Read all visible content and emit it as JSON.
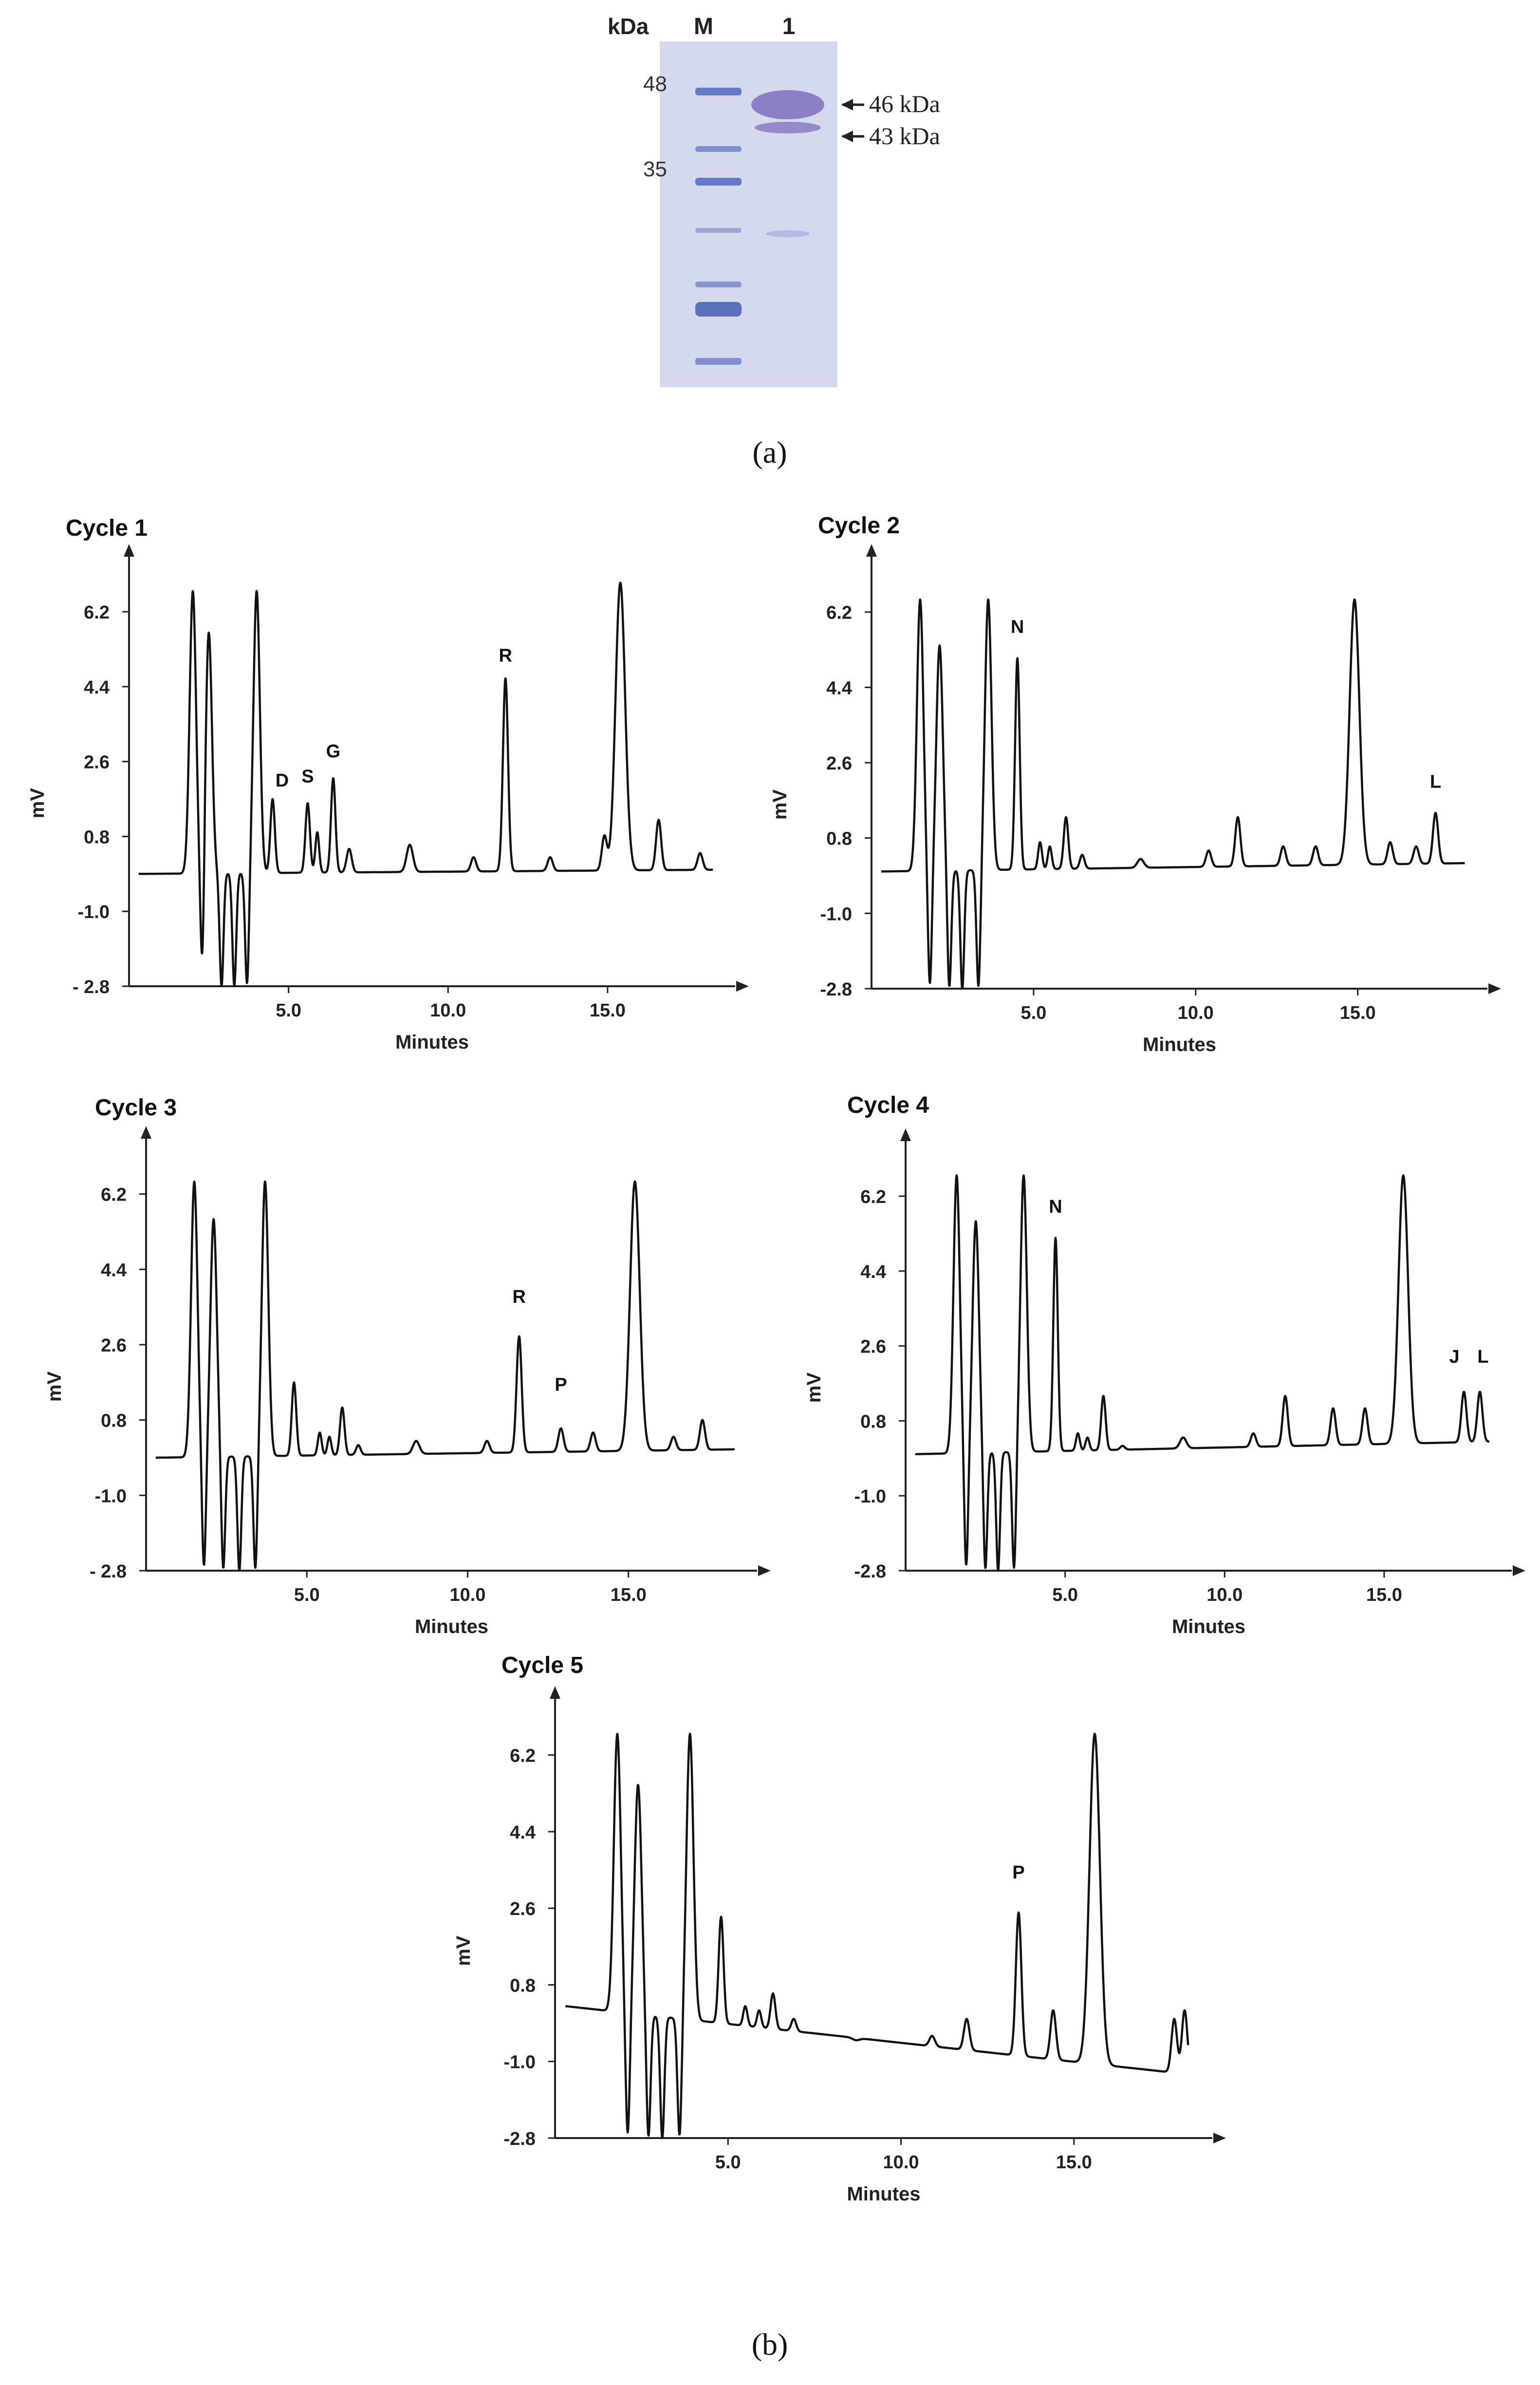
{
  "figure": {
    "panel_a_label": "(a)",
    "panel_b_label": "(b)"
  },
  "gel": {
    "unit_label": "kDa",
    "lane_marker_label": "M",
    "lane_sample_label": "1",
    "marker_bands": [
      "48",
      "35"
    ],
    "sample_band_labels": [
      "46 kDa",
      "43 kDa"
    ],
    "colors": {
      "background": "#d4d9ee",
      "band": "#5a6fc2",
      "sample_band": "#7f6fbe"
    }
  },
  "chart_data": [
    {
      "type": "line",
      "title": "Cycle 1",
      "xlabel": "Minutes",
      "ylabel": "mV",
      "xticks": [
        "5.0",
        "10.0",
        "15.0"
      ],
      "xtick_values": [
        5,
        10,
        15
      ],
      "yticks": [
        "6.2",
        "4.4",
        "2.6",
        "0.8",
        "-1.0",
        "- 2.8"
      ],
      "ytick_values": [
        6.2,
        4.4,
        2.6,
        0.8,
        -1.0,
        -2.8
      ],
      "xlim": [
        0,
        19
      ],
      "ylim": [
        -2.8,
        7.5
      ],
      "baseline": {
        "start": -0.1,
        "end": 0.0
      },
      "peaks": [
        {
          "x": 2.0,
          "y": 6.7,
          "w": 0.1
        },
        {
          "x": 2.5,
          "y": 5.7,
          "w": 0.1
        },
        {
          "x": 4.0,
          "y": 6.7,
          "w": 0.1
        },
        {
          "x": 4.5,
          "y": 1.7,
          "w": 0.07
        },
        {
          "x": 5.6,
          "y": 1.6,
          "w": 0.07
        },
        {
          "x": 5.9,
          "y": 0.9,
          "w": 0.06
        },
        {
          "x": 6.4,
          "y": 2.2,
          "w": 0.07
        },
        {
          "x": 6.9,
          "y": 0.5,
          "w": 0.08
        },
        {
          "x": 8.8,
          "y": 0.6,
          "w": 0.1
        },
        {
          "x": 10.8,
          "y": 0.3,
          "w": 0.08
        },
        {
          "x": 11.8,
          "y": 4.6,
          "w": 0.08
        },
        {
          "x": 13.2,
          "y": 0.3,
          "w": 0.08
        },
        {
          "x": 14.9,
          "y": 0.8,
          "w": 0.08
        },
        {
          "x": 15.4,
          "y": 6.9,
          "w": 0.15
        },
        {
          "x": 16.6,
          "y": 1.2,
          "w": 0.08
        },
        {
          "x": 17.9,
          "y": 0.4,
          "w": 0.08
        }
      ],
      "dips": [
        {
          "x": 2.3,
          "w": 0.06
        },
        {
          "x": 2.9,
          "w": 0.06
        },
        {
          "x": 3.3,
          "w": 0.06
        },
        {
          "x": 3.7,
          "w": 0.06
        }
      ],
      "annotations": [
        {
          "text": "D",
          "x": 4.8,
          "y": 2.0
        },
        {
          "text": "S",
          "x": 5.6,
          "y": 2.1
        },
        {
          "text": "G",
          "x": 6.4,
          "y": 2.7
        },
        {
          "text": "R",
          "x": 11.8,
          "y": 5.0
        }
      ]
    },
    {
      "type": "line",
      "title": "Cycle 2",
      "xlabel": "Minutes",
      "ylabel": "mV",
      "xticks": [
        "5.0",
        "10.0",
        "15.0"
      ],
      "xtick_values": [
        5,
        10,
        15
      ],
      "yticks": [
        "6.2",
        "4.4",
        "2.6",
        "0.8",
        "-1.0",
        "-2.8"
      ],
      "ytick_values": [
        6.2,
        4.4,
        2.6,
        0.8,
        -1.0,
        -2.8
      ],
      "xlim": [
        0,
        19
      ],
      "ylim": [
        -2.8,
        7.5
      ],
      "baseline": {
        "start": 0.0,
        "end": 0.2
      },
      "peaks": [
        {
          "x": 1.5,
          "y": 6.5,
          "w": 0.1
        },
        {
          "x": 2.1,
          "y": 5.4,
          "w": 0.1
        },
        {
          "x": 3.6,
          "y": 6.5,
          "w": 0.1
        },
        {
          "x": 4.5,
          "y": 5.1,
          "w": 0.07
        },
        {
          "x": 5.2,
          "y": 0.7,
          "w": 0.06
        },
        {
          "x": 5.5,
          "y": 0.6,
          "w": 0.06
        },
        {
          "x": 6.0,
          "y": 1.3,
          "w": 0.07
        },
        {
          "x": 6.5,
          "y": 0.4,
          "w": 0.07
        },
        {
          "x": 8.3,
          "y": 0.3,
          "w": 0.1
        },
        {
          "x": 10.4,
          "y": 0.5,
          "w": 0.08
        },
        {
          "x": 11.3,
          "y": 1.3,
          "w": 0.08
        },
        {
          "x": 12.7,
          "y": 0.6,
          "w": 0.08
        },
        {
          "x": 13.7,
          "y": 0.6,
          "w": 0.08
        },
        {
          "x": 14.9,
          "y": 6.5,
          "w": 0.15
        },
        {
          "x": 16.0,
          "y": 0.7,
          "w": 0.08
        },
        {
          "x": 16.8,
          "y": 0.6,
          "w": 0.08
        },
        {
          "x": 17.4,
          "y": 1.4,
          "w": 0.08
        }
      ],
      "dips": [
        {
          "x": 1.8,
          "w": 0.06
        },
        {
          "x": 2.4,
          "w": 0.06
        },
        {
          "x": 2.8,
          "w": 0.06
        },
        {
          "x": 3.3,
          "w": 0.06
        }
      ],
      "annotations": [
        {
          "text": "N",
          "x": 4.5,
          "y": 5.7
        },
        {
          "text": "L",
          "x": 17.4,
          "y": 2.0
        }
      ]
    },
    {
      "type": "line",
      "title": "Cycle  3",
      "xlabel": "Minutes",
      "ylabel": "mV",
      "xticks": [
        "5.0",
        "10.0",
        "15.0"
      ],
      "xtick_values": [
        5,
        10,
        15
      ],
      "yticks": [
        "6.2",
        "4.4",
        "2.6",
        "0.8",
        "-1.0",
        "- 2.8"
      ],
      "ytick_values": [
        6.2,
        4.4,
        2.6,
        0.8,
        -1.0,
        -2.8
      ],
      "xlim": [
        0,
        19
      ],
      "ylim": [
        -2.8,
        7.5
      ],
      "baseline": {
        "start": -0.1,
        "end": 0.1
      },
      "peaks": [
        {
          "x": 1.5,
          "y": 6.5,
          "w": 0.1
        },
        {
          "x": 2.1,
          "y": 5.6,
          "w": 0.1
        },
        {
          "x": 3.7,
          "y": 6.5,
          "w": 0.1
        },
        {
          "x": 4.6,
          "y": 1.7,
          "w": 0.07
        },
        {
          "x": 5.4,
          "y": 0.5,
          "w": 0.06
        },
        {
          "x": 5.7,
          "y": 0.4,
          "w": 0.06
        },
        {
          "x": 6.1,
          "y": 1.1,
          "w": 0.07
        },
        {
          "x": 6.6,
          "y": 0.2,
          "w": 0.07
        },
        {
          "x": 8.4,
          "y": 0.3,
          "w": 0.1
        },
        {
          "x": 10.6,
          "y": 0.3,
          "w": 0.08
        },
        {
          "x": 11.6,
          "y": 2.8,
          "w": 0.08
        },
        {
          "x": 12.9,
          "y": 0.6,
          "w": 0.08
        },
        {
          "x": 13.9,
          "y": 0.5,
          "w": 0.08
        },
        {
          "x": 15.2,
          "y": 6.5,
          "w": 0.15
        },
        {
          "x": 16.4,
          "y": 0.4,
          "w": 0.08
        },
        {
          "x": 17.3,
          "y": 0.8,
          "w": 0.08
        }
      ],
      "dips": [
        {
          "x": 1.8,
          "w": 0.06
        },
        {
          "x": 2.4,
          "w": 0.06
        },
        {
          "x": 2.9,
          "w": 0.06
        },
        {
          "x": 3.4,
          "w": 0.06
        }
      ],
      "annotations": [
        {
          "text": "R",
          "x": 11.6,
          "y": 3.6
        },
        {
          "text": "P",
          "x": 12.9,
          "y": 1.5
        }
      ]
    },
    {
      "type": "line",
      "title": "Cycle 4",
      "xlabel": "Minutes",
      "ylabel": "mV",
      "xticks": [
        "5.0",
        "10.0",
        "15.0"
      ],
      "xtick_values": [
        5,
        10,
        15
      ],
      "yticks": [
        "6.2",
        "4.4",
        "2.6",
        "0.8",
        "-1.0",
        "-2.8"
      ],
      "ytick_values": [
        6.2,
        4.4,
        2.6,
        0.8,
        -1.0,
        -2.8
      ],
      "xlim": [
        0,
        19
      ],
      "ylim": [
        -2.8,
        7.5
      ],
      "baseline": {
        "start": 0.0,
        "end": 0.3
      },
      "peaks": [
        {
          "x": 1.6,
          "y": 6.7,
          "w": 0.1
        },
        {
          "x": 2.2,
          "y": 5.6,
          "w": 0.1
        },
        {
          "x": 3.7,
          "y": 6.7,
          "w": 0.1
        },
        {
          "x": 4.7,
          "y": 5.2,
          "w": 0.07
        },
        {
          "x": 5.4,
          "y": 0.5,
          "w": 0.06
        },
        {
          "x": 5.7,
          "y": 0.4,
          "w": 0.06
        },
        {
          "x": 6.2,
          "y": 1.4,
          "w": 0.07
        },
        {
          "x": 6.8,
          "y": 0.2,
          "w": 0.07
        },
        {
          "x": 8.7,
          "y": 0.4,
          "w": 0.1
        },
        {
          "x": 10.9,
          "y": 0.5,
          "w": 0.08
        },
        {
          "x": 11.9,
          "y": 1.4,
          "w": 0.08
        },
        {
          "x": 13.4,
          "y": 1.1,
          "w": 0.08
        },
        {
          "x": 14.4,
          "y": 1.1,
          "w": 0.08
        },
        {
          "x": 15.6,
          "y": 6.7,
          "w": 0.15
        },
        {
          "x": 17.5,
          "y": 1.5,
          "w": 0.08
        },
        {
          "x": 18.0,
          "y": 1.5,
          "w": 0.08
        }
      ],
      "dips": [
        {
          "x": 1.9,
          "w": 0.06
        },
        {
          "x": 2.5,
          "w": 0.06
        },
        {
          "x": 2.9,
          "w": 0.06
        },
        {
          "x": 3.4,
          "w": 0.06
        }
      ],
      "annotations": [
        {
          "text": "N",
          "x": 4.7,
          "y": 5.8
        },
        {
          "text": "J",
          "x": 17.2,
          "y": 2.2
        },
        {
          "text": "L",
          "x": 18.1,
          "y": 2.2
        }
      ]
    },
    {
      "type": "line",
      "title": "Cycle 5",
      "xlabel": "Minutes",
      "ylabel": "mV",
      "xticks": [
        "5.0",
        "10.0",
        "15.0"
      ],
      "xtick_values": [
        5,
        10,
        15
      ],
      "yticks": [
        "6.2",
        "4.4",
        "2.6",
        "0.8",
        "-1.0",
        "-2.8"
      ],
      "ytick_values": [
        6.2,
        4.4,
        2.6,
        0.8,
        -1.0,
        -2.8
      ],
      "xlim": [
        0,
        19
      ],
      "ylim": [
        -2.8,
        7.5
      ],
      "baseline": {
        "start": 0.3,
        "end": -1.3
      },
      "peaks": [
        {
          "x": 1.8,
          "y": 6.7,
          "w": 0.1
        },
        {
          "x": 2.4,
          "y": 5.5,
          "w": 0.1
        },
        {
          "x": 3.9,
          "y": 6.7,
          "w": 0.1
        },
        {
          "x": 4.8,
          "y": 2.4,
          "w": 0.07
        },
        {
          "x": 5.5,
          "y": 0.3,
          "w": 0.06
        },
        {
          "x": 5.9,
          "y": 0.2,
          "w": 0.06
        },
        {
          "x": 6.3,
          "y": 0.6,
          "w": 0.07
        },
        {
          "x": 6.9,
          "y": 0.0,
          "w": 0.07
        },
        {
          "x": 8.7,
          "y": -0.5,
          "w": 0.1
        },
        {
          "x": 10.9,
          "y": -0.4,
          "w": 0.08
        },
        {
          "x": 11.9,
          "y": 0.0,
          "w": 0.08
        },
        {
          "x": 13.4,
          "y": 2.5,
          "w": 0.08
        },
        {
          "x": 14.4,
          "y": 0.2,
          "w": 0.08
        },
        {
          "x": 15.6,
          "y": 6.7,
          "w": 0.15
        },
        {
          "x": 17.9,
          "y": 0.0,
          "w": 0.08
        },
        {
          "x": 18.2,
          "y": 0.2,
          "w": 0.08
        }
      ],
      "dips": [
        {
          "x": 2.1,
          "w": 0.06
        },
        {
          "x": 2.7,
          "w": 0.06
        },
        {
          "x": 3.1,
          "w": 0.06
        },
        {
          "x": 3.6,
          "w": 0.06
        }
      ],
      "annotations": [
        {
          "text": "P",
          "x": 13.4,
          "y": 3.3
        }
      ]
    }
  ]
}
